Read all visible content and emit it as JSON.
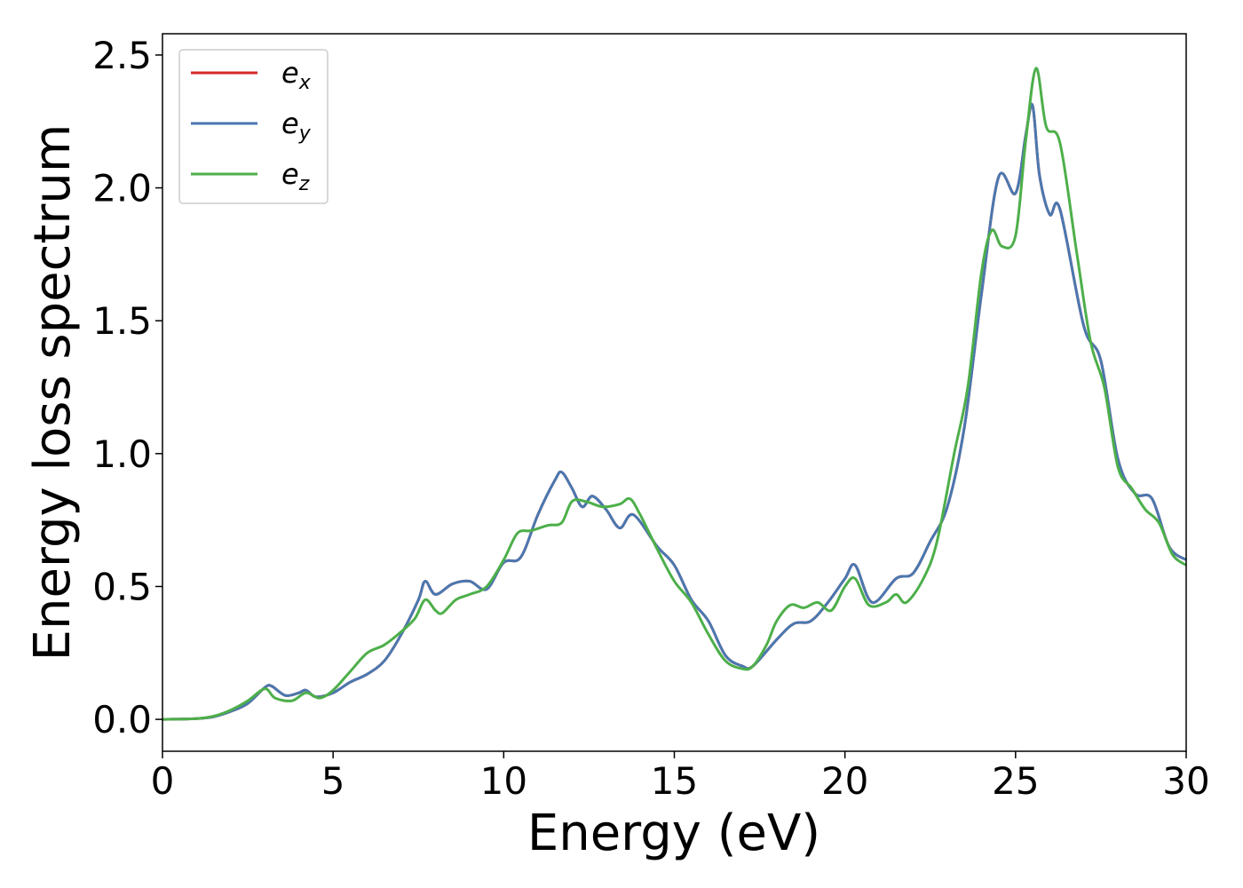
{
  "chart_data": {
    "type": "line",
    "title": "",
    "xlabel": "Energy (eV)",
    "ylabel": "Energy loss spectrum",
    "xlim": [
      0,
      30
    ],
    "ylim": [
      -0.12,
      2.58
    ],
    "x_ticks": [
      "0",
      "5",
      "10",
      "15",
      "20",
      "25",
      "30"
    ],
    "y_ticks": [
      "0.0",
      "0.5",
      "1.0",
      "1.5",
      "2.0",
      "2.5"
    ],
    "grid": false,
    "legend": "top-left",
    "series": [
      {
        "name_base": "e",
        "name_sub": "x",
        "color": "#d62728",
        "points": [
          [
            0,
            0
          ],
          [
            1,
            0.003
          ],
          [
            1.5,
            0.01
          ],
          [
            2,
            0.03
          ],
          [
            2.5,
            0.06
          ],
          [
            3,
            0.12
          ],
          [
            3.2,
            0.125
          ],
          [
            3.6,
            0.09
          ],
          [
            4,
            0.1
          ],
          [
            4.2,
            0.11
          ],
          [
            4.5,
            0.085
          ],
          [
            5,
            0.1
          ],
          [
            5.5,
            0.14
          ],
          [
            6,
            0.17
          ],
          [
            6.5,
            0.22
          ],
          [
            7,
            0.32
          ],
          [
            7.5,
            0.45
          ],
          [
            7.7,
            0.52
          ],
          [
            8,
            0.47
          ],
          [
            8.5,
            0.51
          ],
          [
            9,
            0.52
          ],
          [
            9.5,
            0.49
          ],
          [
            10,
            0.59
          ],
          [
            10.5,
            0.61
          ],
          [
            11,
            0.77
          ],
          [
            11.5,
            0.9
          ],
          [
            11.7,
            0.93
          ],
          [
            12,
            0.87
          ],
          [
            12.3,
            0.8
          ],
          [
            12.6,
            0.84
          ],
          [
            13,
            0.79
          ],
          [
            13.4,
            0.72
          ],
          [
            13.8,
            0.77
          ],
          [
            14.5,
            0.65
          ],
          [
            15,
            0.58
          ],
          [
            15.5,
            0.45
          ],
          [
            16,
            0.37
          ],
          [
            16.5,
            0.24
          ],
          [
            17,
            0.2
          ],
          [
            17.3,
            0.2
          ],
          [
            18,
            0.3
          ],
          [
            18.5,
            0.36
          ],
          [
            19,
            0.37
          ],
          [
            19.5,
            0.44
          ],
          [
            20,
            0.53
          ],
          [
            20.3,
            0.58
          ],
          [
            20.8,
            0.44
          ],
          [
            21.5,
            0.53
          ],
          [
            22,
            0.55
          ],
          [
            22.5,
            0.67
          ],
          [
            23,
            0.8
          ],
          [
            23.5,
            1.1
          ],
          [
            24,
            1.6
          ],
          [
            24.5,
            2.04
          ],
          [
            25,
            1.98
          ],
          [
            25.3,
            2.2
          ],
          [
            25.5,
            2.31
          ],
          [
            25.7,
            2.05
          ],
          [
            26,
            1.9
          ],
          [
            26.3,
            1.92
          ],
          [
            27,
            1.48
          ],
          [
            27.5,
            1.35
          ],
          [
            28,
            0.98
          ],
          [
            28.5,
            0.85
          ],
          [
            29,
            0.83
          ],
          [
            29.5,
            0.65
          ],
          [
            30,
            0.6
          ]
        ]
      },
      {
        "name_base": "e",
        "name_sub": "y",
        "color": "#4a78b0",
        "points": [
          [
            0,
            0
          ],
          [
            1,
            0.003
          ],
          [
            1.5,
            0.01
          ],
          [
            2,
            0.03
          ],
          [
            2.5,
            0.06
          ],
          [
            3,
            0.12
          ],
          [
            3.2,
            0.125
          ],
          [
            3.6,
            0.09
          ],
          [
            4,
            0.1
          ],
          [
            4.2,
            0.11
          ],
          [
            4.5,
            0.085
          ],
          [
            5,
            0.1
          ],
          [
            5.5,
            0.14
          ],
          [
            6,
            0.17
          ],
          [
            6.5,
            0.22
          ],
          [
            7,
            0.32
          ],
          [
            7.5,
            0.45
          ],
          [
            7.7,
            0.52
          ],
          [
            8,
            0.47
          ],
          [
            8.5,
            0.51
          ],
          [
            9,
            0.52
          ],
          [
            9.5,
            0.49
          ],
          [
            10,
            0.59
          ],
          [
            10.5,
            0.61
          ],
          [
            11,
            0.77
          ],
          [
            11.5,
            0.9
          ],
          [
            11.7,
            0.93
          ],
          [
            12,
            0.87
          ],
          [
            12.3,
            0.8
          ],
          [
            12.6,
            0.84
          ],
          [
            13,
            0.79
          ],
          [
            13.4,
            0.72
          ],
          [
            13.8,
            0.77
          ],
          [
            14.5,
            0.65
          ],
          [
            15,
            0.58
          ],
          [
            15.5,
            0.45
          ],
          [
            16,
            0.37
          ],
          [
            16.5,
            0.24
          ],
          [
            17,
            0.2
          ],
          [
            17.3,
            0.2
          ],
          [
            18,
            0.3
          ],
          [
            18.5,
            0.36
          ],
          [
            19,
            0.37
          ],
          [
            19.5,
            0.44
          ],
          [
            20,
            0.53
          ],
          [
            20.3,
            0.58
          ],
          [
            20.8,
            0.44
          ],
          [
            21.5,
            0.53
          ],
          [
            22,
            0.55
          ],
          [
            22.5,
            0.67
          ],
          [
            23,
            0.8
          ],
          [
            23.5,
            1.1
          ],
          [
            24,
            1.6
          ],
          [
            24.5,
            2.04
          ],
          [
            25,
            1.98
          ],
          [
            25.3,
            2.2
          ],
          [
            25.5,
            2.31
          ],
          [
            25.7,
            2.05
          ],
          [
            26,
            1.9
          ],
          [
            26.3,
            1.92
          ],
          [
            27,
            1.48
          ],
          [
            27.5,
            1.35
          ],
          [
            28,
            0.98
          ],
          [
            28.5,
            0.85
          ],
          [
            29,
            0.83
          ],
          [
            29.5,
            0.65
          ],
          [
            30,
            0.6
          ]
        ]
      },
      {
        "name_base": "e",
        "name_sub": "z",
        "color": "#4daf4a",
        "points": [
          [
            0,
            0
          ],
          [
            1,
            0.003
          ],
          [
            1.5,
            0.012
          ],
          [
            2,
            0.035
          ],
          [
            2.5,
            0.07
          ],
          [
            3,
            0.115
          ],
          [
            3.3,
            0.08
          ],
          [
            3.8,
            0.07
          ],
          [
            4.2,
            0.1
          ],
          [
            4.6,
            0.08
          ],
          [
            5,
            0.11
          ],
          [
            5.5,
            0.18
          ],
          [
            6,
            0.25
          ],
          [
            6.5,
            0.28
          ],
          [
            7,
            0.33
          ],
          [
            7.4,
            0.38
          ],
          [
            7.7,
            0.45
          ],
          [
            8,
            0.41
          ],
          [
            8.2,
            0.4
          ],
          [
            8.6,
            0.45
          ],
          [
            9,
            0.47
          ],
          [
            9.5,
            0.5
          ],
          [
            10,
            0.6
          ],
          [
            10.4,
            0.7
          ],
          [
            10.8,
            0.71
          ],
          [
            11.3,
            0.73
          ],
          [
            11.7,
            0.74
          ],
          [
            12,
            0.82
          ],
          [
            12.4,
            0.82
          ],
          [
            12.9,
            0.8
          ],
          [
            13.4,
            0.81
          ],
          [
            13.7,
            0.83
          ],
          [
            14,
            0.77
          ],
          [
            14.5,
            0.64
          ],
          [
            15,
            0.52
          ],
          [
            15.5,
            0.44
          ],
          [
            16,
            0.32
          ],
          [
            16.5,
            0.22
          ],
          [
            17,
            0.19
          ],
          [
            17.3,
            0.2
          ],
          [
            17.7,
            0.28
          ],
          [
            18,
            0.37
          ],
          [
            18.4,
            0.43
          ],
          [
            18.8,
            0.42
          ],
          [
            19.2,
            0.44
          ],
          [
            19.6,
            0.41
          ],
          [
            20,
            0.5
          ],
          [
            20.3,
            0.53
          ],
          [
            20.7,
            0.43
          ],
          [
            21.2,
            0.44
          ],
          [
            21.5,
            0.47
          ],
          [
            21.8,
            0.44
          ],
          [
            22.3,
            0.53
          ],
          [
            22.7,
            0.67
          ],
          [
            23.2,
            1.0
          ],
          [
            23.6,
            1.25
          ],
          [
            24,
            1.68
          ],
          [
            24.3,
            1.84
          ],
          [
            24.6,
            1.78
          ],
          [
            25,
            1.82
          ],
          [
            25.3,
            2.18
          ],
          [
            25.6,
            2.45
          ],
          [
            25.9,
            2.23
          ],
          [
            26.3,
            2.17
          ],
          [
            26.8,
            1.75
          ],
          [
            27.2,
            1.42
          ],
          [
            27.6,
            1.25
          ],
          [
            28,
            0.95
          ],
          [
            28.4,
            0.87
          ],
          [
            28.8,
            0.79
          ],
          [
            29.2,
            0.74
          ],
          [
            29.6,
            0.62
          ],
          [
            30,
            0.58
          ]
        ]
      }
    ]
  }
}
